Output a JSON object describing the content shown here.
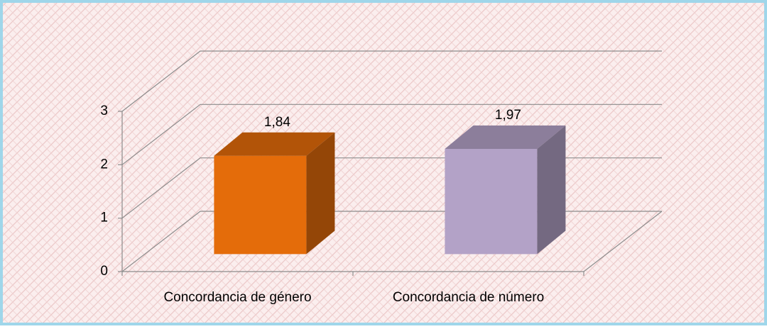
{
  "chart_data": {
    "type": "bar3d",
    "categories": [
      "Concordancia de género",
      "Concordancia de número"
    ],
    "values": [
      1.84,
      1.97
    ],
    "value_labels": [
      "1,84",
      "1,97"
    ],
    "colors": [
      "#e46c0a",
      "#b3a2c7"
    ],
    "ylim": [
      0,
      3
    ],
    "yticks": [
      0,
      1,
      2,
      3
    ],
    "grid": true
  }
}
